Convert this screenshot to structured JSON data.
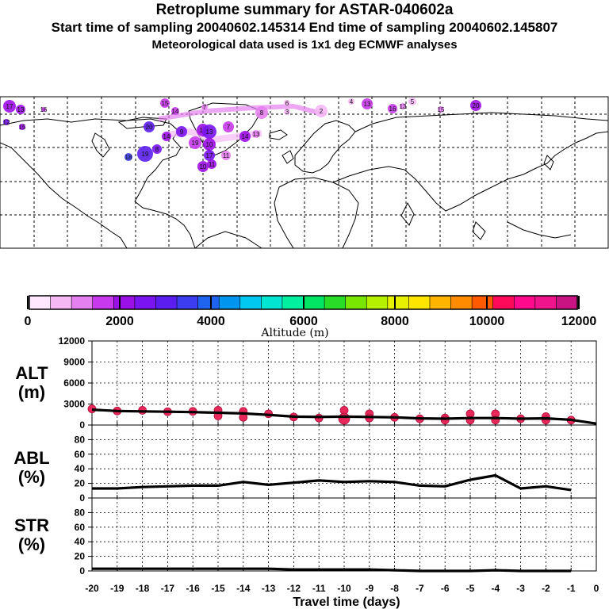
{
  "header": {
    "title": "Retroplume summary for ASTAR-040602a",
    "sampling": "Start time of sampling 20040602.145314     End time of sampling 20040602.145807",
    "meteo": "Meteorological data used is 1x1 deg ECMWF analyses"
  },
  "colorbar": {
    "colors": [
      "#ffe8ff",
      "#f5b8f5",
      "#e580f0",
      "#c838ec",
      "#9c10e8",
      "#7a14f0",
      "#5a1ef0",
      "#3c3cf0",
      "#1e64f0",
      "#0096f0",
      "#00c8f0",
      "#00e6d2",
      "#00f0a0",
      "#00e664",
      "#28dc28",
      "#78e600",
      "#b4f000",
      "#e6f000",
      "#ffe600",
      "#ffb400",
      "#ff8c00",
      "#ff5a00",
      "#ff0a5a",
      "#ff0a8c",
      "#f0148c",
      "#c81482"
    ],
    "ticks": [
      "0",
      "2000",
      "4000",
      "6000",
      "8000",
      "10000",
      "12000"
    ],
    "label": "Altitude (m)"
  },
  "panels": {
    "alt": {
      "name_line1": "ALT",
      "name_line2": "(m)"
    },
    "abl": {
      "name_line1": "ABL",
      "name_line2": "(%)"
    },
    "str": {
      "name_line1": "STR",
      "name_line2": "(%)"
    }
  },
  "map_labels": [
    "17",
    "13",
    "16",
    "15",
    "4",
    "13",
    "16",
    "13",
    "5",
    "15",
    "20",
    "7",
    "6",
    "2",
    "3",
    "8",
    "7",
    "12",
    "13",
    "11",
    "14",
    "13",
    "10",
    "9",
    "8",
    "19",
    "18",
    "14",
    "19",
    "17",
    "11",
    "10",
    "14",
    "12",
    "15",
    "20"
  ],
  "chart_data": [
    {
      "type": "line",
      "title": "ALT (m)",
      "xlabel": "Travel time (days)",
      "x": [
        -20,
        -19,
        -18,
        -17,
        -16,
        -15,
        -14,
        -13,
        -12,
        -11,
        -10,
        -9,
        -8,
        -7,
        -6,
        -5,
        -4,
        -3,
        -2,
        -1,
        0
      ],
      "y": [
        2200,
        2000,
        1950,
        1900,
        1850,
        1750,
        1650,
        1450,
        1200,
        1150,
        1200,
        1150,
        1100,
        950,
        900,
        1000,
        1000,
        900,
        950,
        750,
        200
      ],
      "dots_x": [
        -20,
        -19,
        -18,
        -17,
        -16,
        -15,
        -15,
        -14,
        -14,
        -13,
        -12,
        -11,
        -10,
        -10,
        -9,
        -9,
        -8,
        -7,
        -6,
        -6,
        -5,
        -5,
        -4,
        -4,
        -3,
        -2,
        -2,
        -1
      ],
      "dots_y": [
        2300,
        2000,
        2100,
        1900,
        1950,
        2100,
        1300,
        1950,
        1100,
        1600,
        1150,
        1000,
        2100,
        900,
        1600,
        1000,
        1100,
        900,
        1000,
        700,
        1600,
        700,
        1600,
        700,
        900,
        1200,
        700,
        700
      ],
      "ylim": [
        0,
        12000
      ],
      "yticks": [
        "12000",
        "9000",
        "6000",
        "3000",
        "0"
      ],
      "xlim": [
        -20,
        0
      ],
      "xticks": [
        "-20",
        "-19",
        "-18",
        "-17",
        "-16",
        "-15",
        "-14",
        "-13",
        "-12",
        "-11",
        "-10",
        "-9",
        "-8",
        "-7",
        "-6",
        "-5",
        "-4",
        "-3",
        "-2",
        "-1",
        "0"
      ]
    },
    {
      "type": "line",
      "title": "ABL (%)",
      "x": [
        -20,
        -19,
        -18,
        -17,
        -16,
        -15,
        -14,
        -13,
        -12,
        -11,
        -10,
        -9,
        -8,
        -7,
        -6,
        -5,
        -4,
        -3,
        -2,
        -1
      ],
      "y": [
        13,
        13,
        15,
        16,
        17,
        17,
        22,
        18,
        21,
        24,
        22,
        23,
        22,
        17,
        16,
        25,
        31,
        13,
        16,
        11
      ],
      "ylim": [
        0,
        100
      ],
      "yticks": [
        "80",
        "60",
        "40",
        "20",
        "0"
      ]
    },
    {
      "type": "line",
      "title": "STR (%)",
      "x": [
        -20,
        -19,
        -18,
        -17,
        -16,
        -15,
        -14,
        -13,
        -12,
        -11,
        -10,
        -9,
        -8,
        -7,
        -6,
        -5,
        -4,
        -3,
        -2,
        -1
      ],
      "y": [
        3,
        3,
        3,
        3,
        3,
        3,
        3,
        3,
        2,
        2,
        2,
        2,
        1,
        0,
        0,
        0,
        1,
        0,
        0,
        0
      ],
      "ylim": [
        0,
        100
      ],
      "yticks": [
        "80",
        "60",
        "40",
        "20",
        "0"
      ]
    }
  ]
}
